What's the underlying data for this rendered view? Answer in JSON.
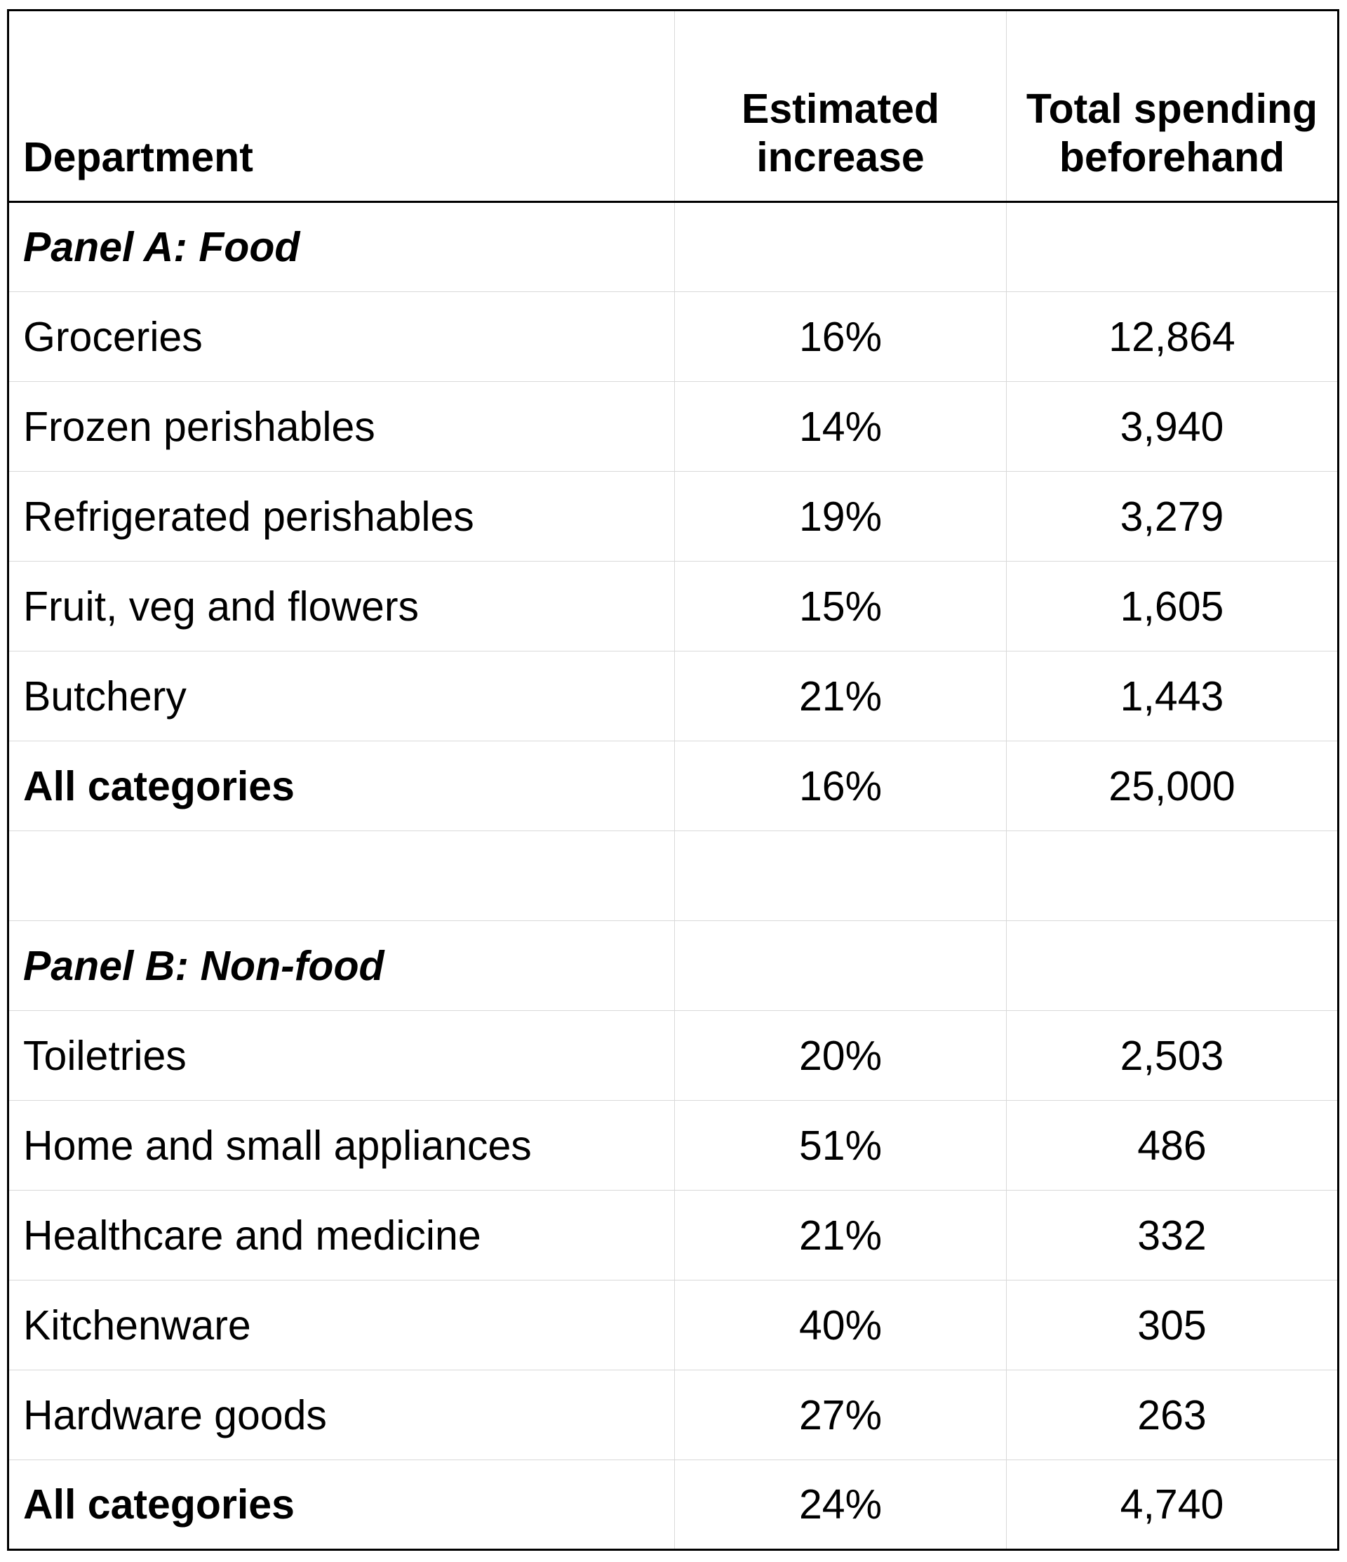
{
  "table": {
    "headers": {
      "department": "Department",
      "estimated_increase": "Estimated increase",
      "total_spending": "Total spending beforehand"
    },
    "rows": [
      {
        "dept": "Panel A: Food",
        "inc": "",
        "spend": "",
        "kind": "panel"
      },
      {
        "dept": "Groceries",
        "inc": "16%",
        "spend": "12,864",
        "kind": "normal"
      },
      {
        "dept": "Frozen perishables",
        "inc": "14%",
        "spend": "3,940",
        "kind": "normal"
      },
      {
        "dept": "Refrigerated perishables",
        "inc": "19%",
        "spend": "3,279",
        "kind": "normal"
      },
      {
        "dept": "Fruit, veg and flowers",
        "inc": "15%",
        "spend": "1,605",
        "kind": "normal"
      },
      {
        "dept": "Butchery",
        "inc": "21%",
        "spend": "1,443",
        "kind": "normal"
      },
      {
        "dept": "All categories",
        "inc": "16%",
        "spend": "25,000",
        "kind": "total"
      },
      {
        "dept": "",
        "inc": "",
        "spend": "",
        "kind": "empty"
      },
      {
        "dept": "Panel B: Non-food",
        "inc": "",
        "spend": "",
        "kind": "panel"
      },
      {
        "dept": "Toiletries",
        "inc": "20%",
        "spend": "2,503",
        "kind": "normal"
      },
      {
        "dept": "Home and small appliances",
        "inc": "51%",
        "spend": "486",
        "kind": "normal"
      },
      {
        "dept": "Healthcare and medicine",
        "inc": "21%",
        "spend": "332",
        "kind": "normal"
      },
      {
        "dept": "Kitchenware",
        "inc": "40%",
        "spend": "305",
        "kind": "normal"
      },
      {
        "dept": "Hardware goods",
        "inc": "27%",
        "spend": "263",
        "kind": "normal"
      },
      {
        "dept": "All categories",
        "inc": "24%",
        "spend": "4,740",
        "kind": "total"
      }
    ],
    "colors": {
      "grid_line": "#d9d9d9",
      "outer_border": "#000000",
      "text": "#000000",
      "background": "#ffffff"
    }
  }
}
